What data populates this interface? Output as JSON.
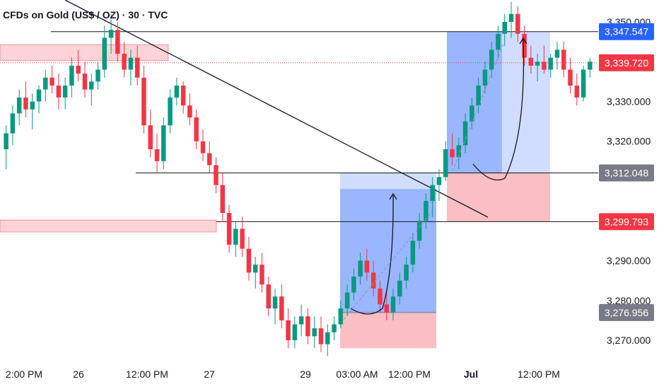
{
  "chart_data": {
    "type": "candlestick",
    "title": "CFDs on Gold (US$ / OZ) · 30 · TVC",
    "ylim": [
      3264.5,
      3355.5
    ],
    "y_ticks": [
      {
        "value": 3350,
        "label": "3,350.000"
      },
      {
        "value": 3330,
        "label": "3,330.000"
      },
      {
        "value": 3320,
        "label": "3,320.000"
      },
      {
        "value": 3290,
        "label": "3,290.000"
      },
      {
        "value": 3280,
        "label": "3,280.000"
      },
      {
        "value": 3270,
        "label": "3,270.000"
      }
    ],
    "x_ticks": [
      "2:00 PM",
      "26",
      "12:00 PM",
      "27",
      "29",
      "03:00 AM",
      "12:00 PM",
      "Jul",
      "12:00 PM"
    ],
    "price_levels": [
      {
        "value": 3347.547,
        "label": "3,347.547",
        "color": "#2962ff"
      },
      {
        "value": 3339.72,
        "label": "3,339.720",
        "color": "#f23645"
      },
      {
        "value": 3312.048,
        "label": "3,312.048",
        "color": "#787b86"
      },
      {
        "value": 3299.793,
        "label": "3,299.793",
        "color": "#f23645"
      },
      {
        "value": 3276.956,
        "label": "3,276.956",
        "color": "#787b86"
      }
    ],
    "zones": [
      {
        "name": "supply",
        "y1": 3344.3,
        "y2": 3340.3
      },
      {
        "name": "demand",
        "y1": 3300.2,
        "y2": 3297.2
      }
    ],
    "long_positions": [
      {
        "entry": 3276.956,
        "target": 3312.048,
        "stop": 3268.0
      },
      {
        "entry": 3312.048,
        "target": 3347.547,
        "stop": 3299.793
      }
    ],
    "up_color": "#089981",
    "down_color": "#f23645",
    "candles": [
      [
        3318,
        3324,
        3313,
        3322
      ],
      [
        3322,
        3329,
        3319,
        3327
      ],
      [
        3327,
        3333,
        3324,
        3331
      ],
      [
        3331,
        3335,
        3326,
        3328
      ],
      [
        3328,
        3332,
        3323,
        3330
      ],
      [
        3330,
        3334,
        3327,
        3333
      ],
      [
        3333,
        3338,
        3330,
        3336
      ],
      [
        3336,
        3339,
        3332,
        3334
      ],
      [
        3334,
        3337,
        3328,
        3331
      ],
      [
        3331,
        3336,
        3328,
        3334
      ],
      [
        3334,
        3341,
        3331,
        3339
      ],
      [
        3339,
        3343,
        3335,
        3337
      ],
      [
        3337,
        3340,
        3331,
        3333
      ],
      [
        3333,
        3337,
        3329,
        3335
      ],
      [
        3335,
        3340,
        3333,
        3338
      ],
      [
        3338,
        3349,
        3336,
        3346
      ],
      [
        3346,
        3352,
        3342,
        3348
      ],
      [
        3348,
        3350,
        3340,
        3342
      ],
      [
        3342,
        3345,
        3336,
        3338
      ],
      [
        3338,
        3343,
        3334,
        3341
      ],
      [
        3341,
        3344,
        3334,
        3336
      ],
      [
        3336,
        3339,
        3322,
        3324
      ],
      [
        3324,
        3328,
        3316,
        3318
      ],
      [
        3318,
        3322,
        3312,
        3315
      ],
      [
        3315,
        3326,
        3313,
        3324
      ],
      [
        3324,
        3333,
        3322,
        3331
      ],
      [
        3331,
        3336,
        3329,
        3334
      ],
      [
        3334,
        3335,
        3327,
        3329
      ],
      [
        3329,
        3332,
        3324,
        3326
      ],
      [
        3326,
        3328,
        3318,
        3320
      ],
      [
        3320,
        3323,
        3315,
        3317
      ],
      [
        3317,
        3320,
        3312,
        3314
      ],
      [
        3314,
        3316,
        3307,
        3309
      ],
      [
        3309,
        3312,
        3300,
        3302
      ],
      [
        3302,
        3304,
        3292,
        3294
      ],
      [
        3294,
        3300,
        3291,
        3298
      ],
      [
        3298,
        3301,
        3291,
        3293
      ],
      [
        3293,
        3296,
        3285,
        3287
      ],
      [
        3287,
        3291,
        3283,
        3289
      ],
      [
        3289,
        3292,
        3282,
        3284
      ],
      [
        3284,
        3286,
        3276,
        3278
      ],
      [
        3278,
        3283,
        3274,
        3281
      ],
      [
        3281,
        3284,
        3273,
        3275
      ],
      [
        3275,
        3278,
        3268,
        3270
      ],
      [
        3270,
        3276,
        3268,
        3274
      ],
      [
        3274,
        3279,
        3271,
        3276
      ],
      [
        3276,
        3278,
        3269,
        3271
      ],
      [
        3271,
        3276,
        3268,
        3273
      ],
      [
        3273,
        3276,
        3267,
        3269
      ],
      [
        3269,
        3274,
        3266,
        3272
      ],
      [
        3272,
        3276,
        3270,
        3274
      ],
      [
        3274,
        3280,
        3273,
        3278
      ],
      [
        3278,
        3284,
        3276,
        3282
      ],
      [
        3282,
        3288,
        3280,
        3286
      ],
      [
        3286,
        3292,
        3284,
        3290
      ],
      [
        3290,
        3293,
        3285,
        3287
      ],
      [
        3287,
        3290,
        3281,
        3283
      ],
      [
        3283,
        3285,
        3277,
        3279
      ],
      [
        3279,
        3282,
        3275,
        3277
      ],
      [
        3277,
        3283,
        3275,
        3281
      ],
      [
        3281,
        3287,
        3279,
        3285
      ],
      [
        3285,
        3291,
        3283,
        3289
      ],
      [
        3289,
        3297,
        3287,
        3295
      ],
      [
        3295,
        3302,
        3293,
        3300
      ],
      [
        3300,
        3307,
        3298,
        3305
      ],
      [
        3305,
        3311,
        3301,
        3309
      ],
      [
        3309,
        3313,
        3305,
        3311
      ],
      [
        3311,
        3320,
        3310,
        3318
      ],
      [
        3318,
        3322,
        3314,
        3316
      ],
      [
        3316,
        3321,
        3313,
        3319
      ],
      [
        3319,
        3327,
        3317,
        3325
      ],
      [
        3325,
        3331,
        3323,
        3329
      ],
      [
        3329,
        3336,
        3327,
        3334
      ],
      [
        3334,
        3340,
        3332,
        3338
      ],
      [
        3338,
        3345,
        3336,
        3343
      ],
      [
        3343,
        3349,
        3341,
        3347
      ],
      [
        3347,
        3352,
        3344,
        3350
      ],
      [
        3350,
        3355,
        3346,
        3352
      ],
      [
        3352,
        3354,
        3345,
        3347
      ],
      [
        3347,
        3349,
        3339,
        3341
      ],
      [
        3341,
        3344,
        3337,
        3339
      ],
      [
        3339,
        3342,
        3335,
        3340
      ],
      [
        3340,
        3344,
        3337,
        3338
      ],
      [
        3338,
        3342,
        3336,
        3341
      ],
      [
        3341,
        3345,
        3338,
        3343
      ],
      [
        3343,
        3345,
        3336,
        3338
      ],
      [
        3338,
        3341,
        3332,
        3334
      ],
      [
        3334,
        3337,
        3329,
        3331
      ],
      [
        3331,
        3339,
        3330,
        3338
      ],
      [
        3338,
        3341,
        3336,
        3340
      ]
    ]
  }
}
